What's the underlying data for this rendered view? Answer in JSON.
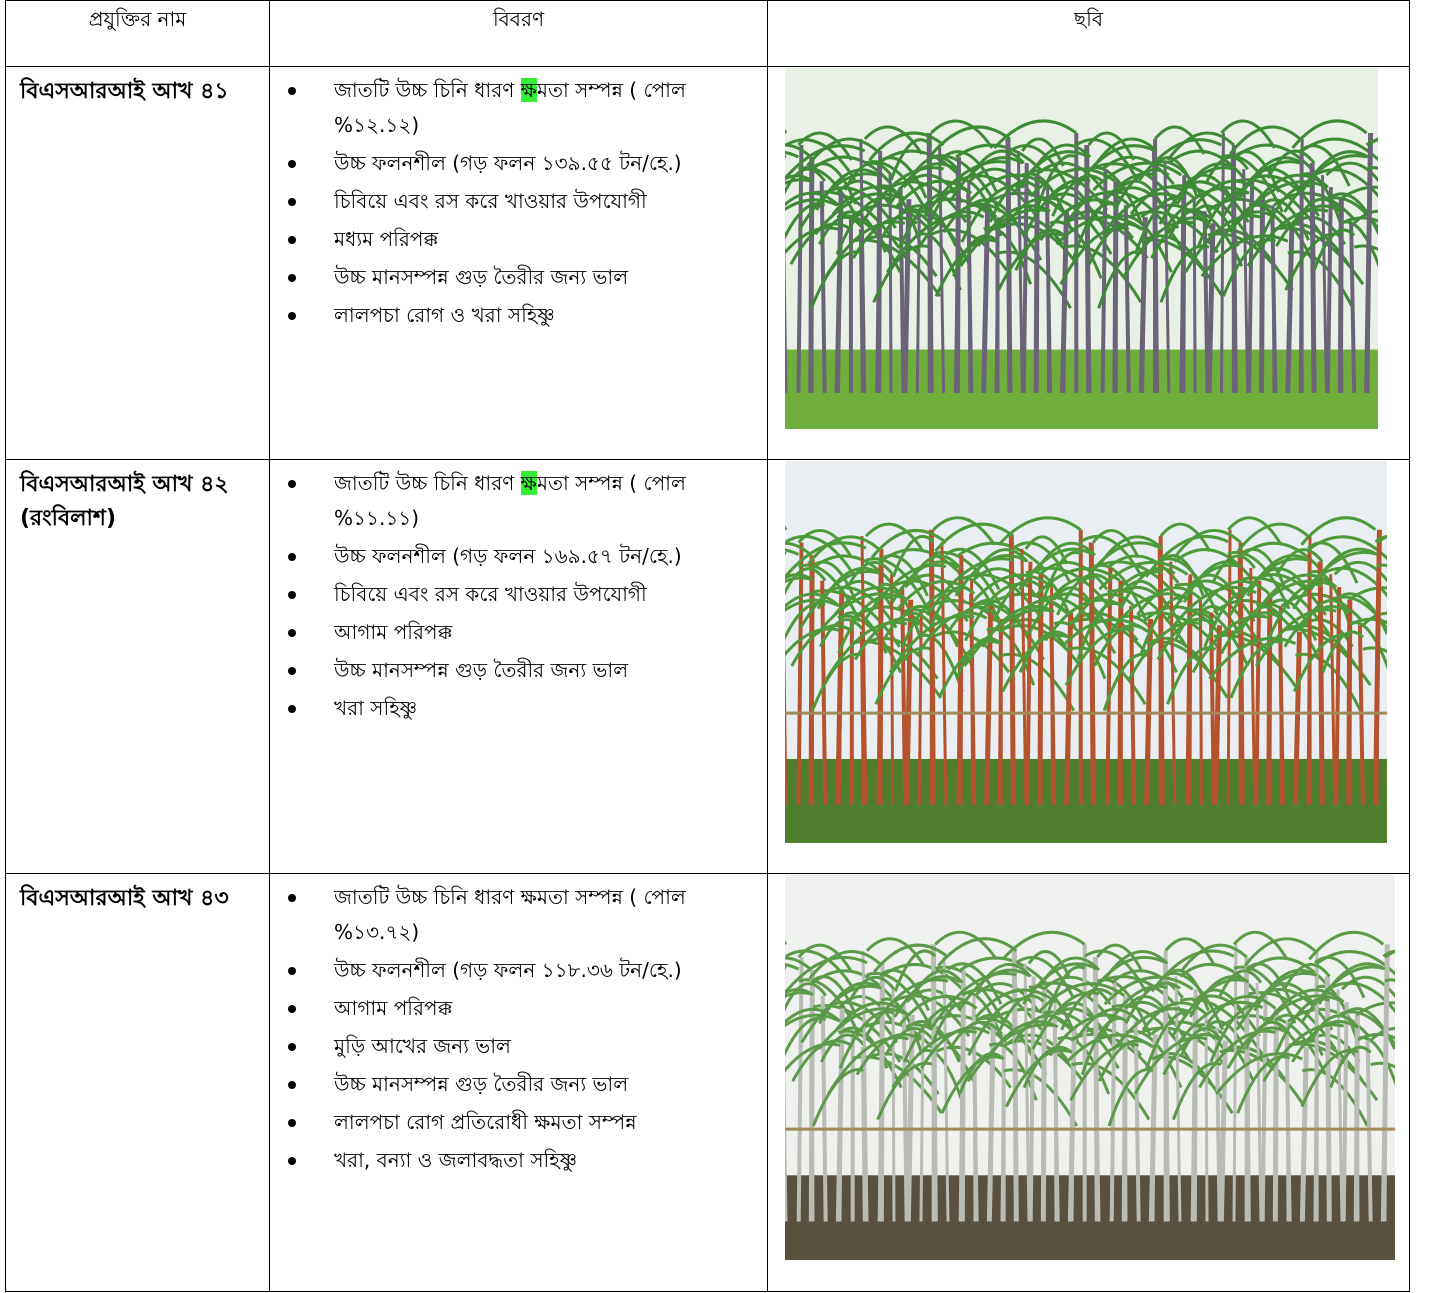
{
  "table": {
    "header": [
      "প্রযুক্তির নাম",
      "বিবরণ",
      "ছবি"
    ],
    "rows": [
      {
        "name": "বিএসআরআই আখ ৪১",
        "first_bullet": {
          "before": "জাতটি উচ্চ চিনি ধারণ ",
          "highlight": "ক্ষ",
          "after": "মতা সম্পন্ন ( পোল %১২.১২)"
        },
        "bullets": [
          "উচ্চ ফলনশীল (গড় ফলন ১৩৯.৫৫ টন/হে.)",
          "চিবিয়ে এবং রস করে খাওয়ার  উপযোগী",
          "মধ্যম পরিপক্ক",
          "উচ্চ মানসম্পন্ন গুড় তৈরীর জন্য ভাল",
          "লালপচা রোগ ও খরা সহিষ্ণু"
        ]
      },
      {
        "name": "বিএসআরআই আখ ৪২ (রংবিলাশ)",
        "first_bullet": {
          "before": "জাতটি উচ্চ চিনি ধারণ ",
          "highlight": "ক্ষ",
          "after": "মতা সম্পন্ন ( পোল %১১.১১)"
        },
        "bullets": [
          "উচ্চ ফলনশীল (গড় ফলন ১৬৯.৫৭ টন/হে.)",
          "চিবিয়ে এবং রস করে খাওয়ার  উপযোগী",
          "আগাম পরিপক্ক",
          "উচ্চ মানসম্পন্ন গুড় তৈরীর জন্য ভাল",
          "খরা সহিষ্ণু"
        ]
      },
      {
        "name": "বিএসআরআই আখ ৪৩",
        "first_bullet": {
          "before": "জাতটি উচ্চ চিনি ধারণ ক্ষমতা সম্পন্ন ( পোল %১৩.৭২)"
        },
        "bullets": [
          "উচ্চ ফলনশীল (গড় ফলন ১১৮.৩৬ টন/হে.)",
          "আগাম পরিপক্ক",
          "মুড়ি আখের জন্য ভাল",
          "উচ্চ মানসম্পন্ন গুড় তৈরীর জন্য ভাল",
          "লালপচা রোগ প্রতিরোধী ক্ষমতা সম্পন্ন",
          "খরা, বন্যা ও জলাবদ্ধতা  সহিষ্ণু"
        ]
      }
    ]
  }
}
